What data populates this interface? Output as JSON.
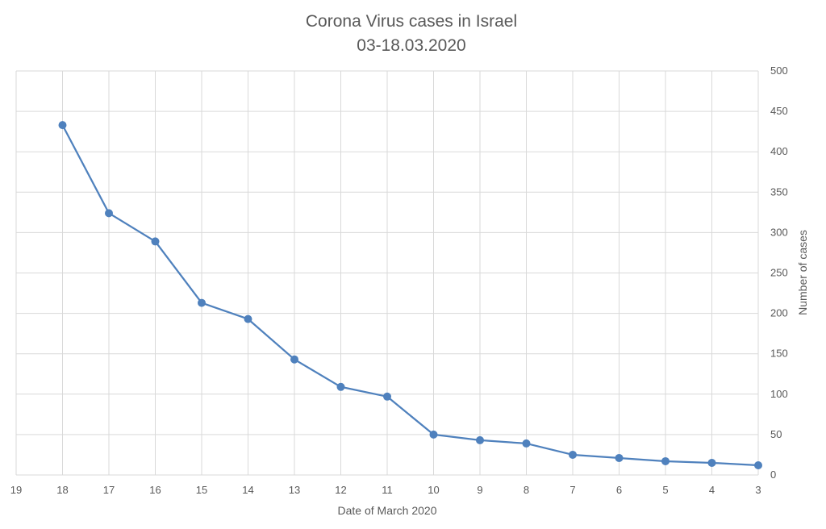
{
  "chart_data": {
    "type": "line",
    "title": [
      "Corona Virus cases in Israel",
      "03-18.03.2020"
    ],
    "xlabel": "Date of March 2020",
    "ylabel": "Number of cases",
    "x_reversed": true,
    "xlim": [
      3,
      19
    ],
    "xticks": [
      19,
      18,
      17,
      16,
      15,
      14,
      13,
      12,
      11,
      10,
      9,
      8,
      7,
      6,
      5,
      4,
      3
    ],
    "ylim": [
      0,
      500
    ],
    "yticks": [
      0,
      50,
      100,
      150,
      200,
      250,
      300,
      350,
      400,
      450,
      500
    ],
    "y_axis_position": "right",
    "grid": true,
    "legend": "none",
    "color": "#4f81bd",
    "series": [
      {
        "x": [
          18,
          17,
          16,
          15,
          14,
          13,
          12,
          11,
          10,
          9,
          8,
          7,
          6,
          5,
          4,
          3
        ],
        "values": [
          433,
          324,
          289,
          213,
          193,
          143,
          109,
          97,
          50,
          43,
          39,
          25,
          21,
          17,
          15,
          12
        ]
      }
    ]
  }
}
